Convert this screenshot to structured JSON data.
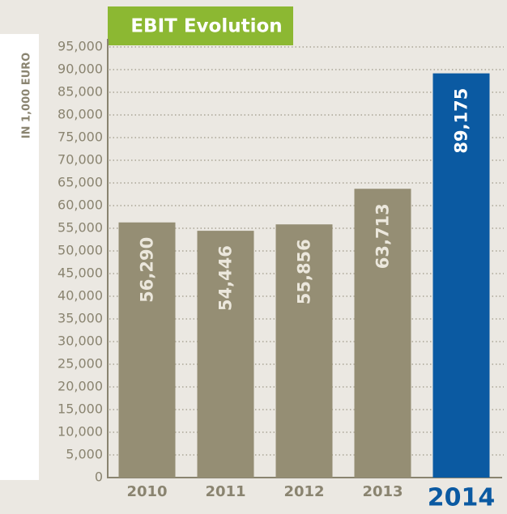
{
  "chart_data": {
    "type": "bar",
    "title": "EBIT Evolution",
    "ylabel": "IN 1,000 EURO",
    "categories": [
      "2010",
      "2011",
      "2012",
      "2013",
      "2014"
    ],
    "values": [
      56290,
      54446,
      55856,
      63713,
      89175
    ],
    "value_labels": [
      "56,290",
      "54,446",
      "55,856",
      "63,713",
      "89,175"
    ],
    "colors": [
      "#958e74",
      "#958e74",
      "#958e74",
      "#958e74",
      "#0b5aa2"
    ],
    "ylim": [
      0,
      95000
    ],
    "yticks": [
      0,
      {
        "value": 5000,
        "label": "5,000"
      },
      {
        "value": 10000,
        "label": "10,000"
      },
      {
        "value": 15000,
        "label": "15,000"
      },
      {
        "value": 20000,
        "label": "20,000"
      },
      {
        "value": 25000,
        "label": "25,000"
      },
      {
        "value": 30000,
        "label": "30,000"
      },
      {
        "value": 35000,
        "label": "35,000"
      },
      {
        "value": 40000,
        "label": "40,000"
      },
      {
        "value": 45000,
        "label": "45,000"
      },
      {
        "value": 50000,
        "label": "50,000"
      },
      {
        "value": 55000,
        "label": "55,000"
      },
      {
        "value": 60000,
        "label": "60,000"
      },
      {
        "value": 65000,
        "label": "65,000"
      },
      {
        "value": 70000,
        "label": "70,000"
      },
      {
        "value": 75000,
        "label": "75,000"
      },
      {
        "value": 80000,
        "label": "80,000"
      },
      {
        "value": 85000,
        "label": "85,000"
      },
      {
        "value": 90000,
        "label": "90,000"
      },
      {
        "value": 95000,
        "label": "95,000"
      }
    ],
    "grid": true
  }
}
